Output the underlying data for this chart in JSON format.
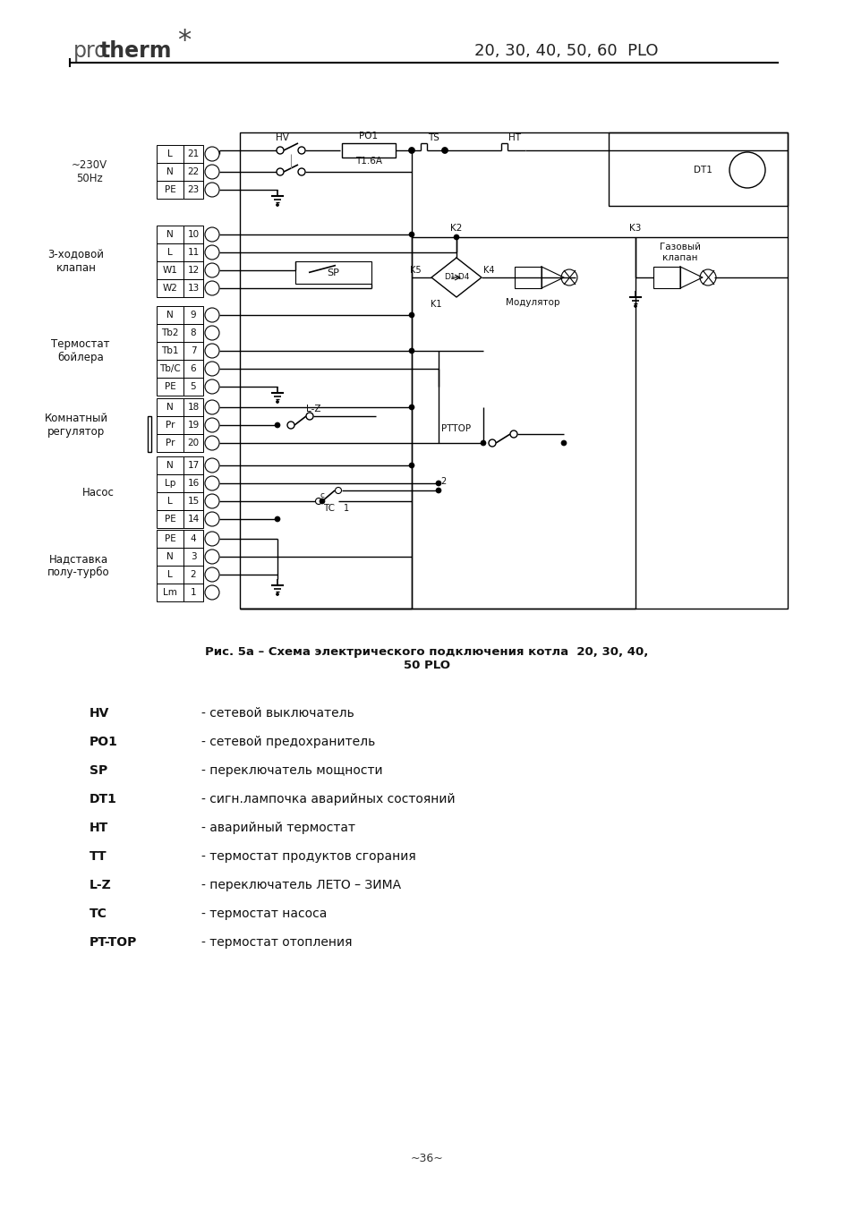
{
  "title_header": "20, 30, 40, 50, 60  PLO",
  "figure_caption": "Рис. 5a – Схема электрического подключения котла  20, 30, 40,\n50 PLO",
  "page_number": "~36~",
  "legend_items": [
    [
      "HV",
      "- сетевой выключатель"
    ],
    [
      "PO1",
      "- сетевой предохранитель"
    ],
    [
      "SP",
      "- переключатель мощности"
    ],
    [
      "DT1",
      "- сигн.лампочка аварийных состояний"
    ],
    [
      "HT",
      "- аварийный термостат"
    ],
    [
      "TT",
      "- термостат продуктов сгорания"
    ],
    [
      "L-Z",
      "- переключатель ЛЕТО – ЗИМА"
    ],
    [
      "TC",
      "- термостат насоса"
    ],
    [
      "PT-TOP",
      "- термостат отопления"
    ]
  ],
  "bg_color": "#ffffff",
  "line_color": "#000000"
}
